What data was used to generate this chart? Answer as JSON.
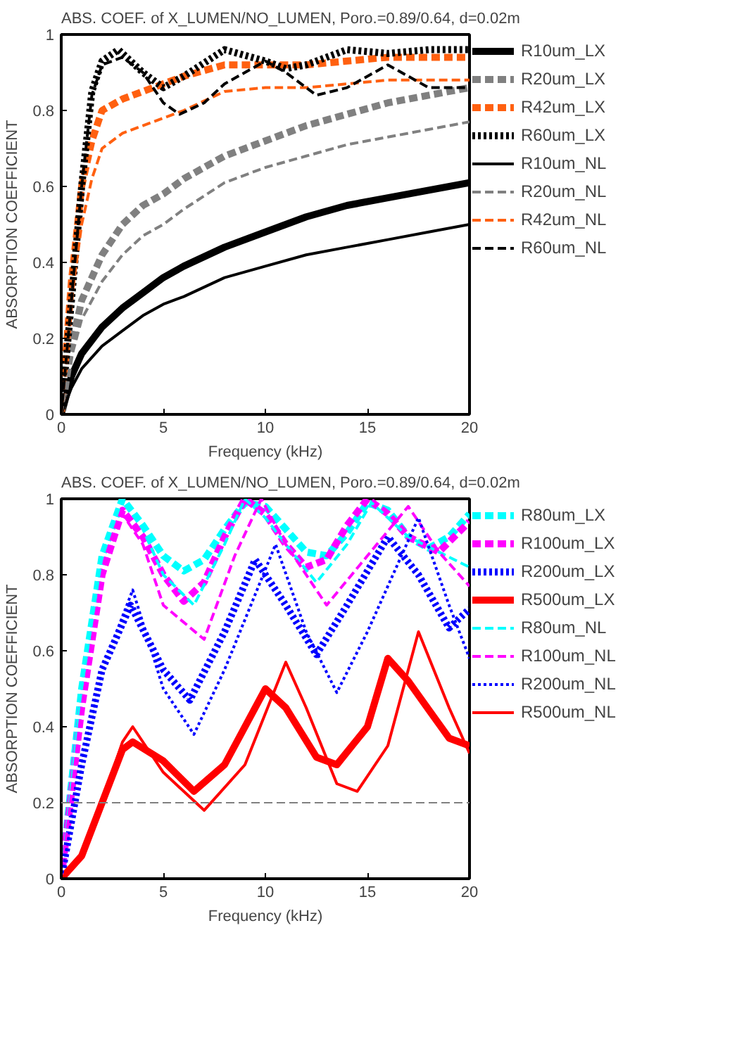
{
  "chart_data": [
    {
      "type": "line",
      "title": "ABS. COEF. of X_LUMEN/NO_LUMEN, Poro.=0.89/0.64, d=0.02m",
      "xlabel": "Frequency (kHz)",
      "ylabel": "ABSORPTION COEFFICIENT",
      "xlim": [
        0,
        20
      ],
      "ylim": [
        0,
        1
      ],
      "xticks": [
        0,
        5,
        10,
        15,
        20
      ],
      "yticks": [
        0,
        0.2,
        0.4,
        0.6,
        0.8,
        1
      ],
      "grid": false,
      "legend": "right",
      "marker": "none",
      "series": [
        {
          "name": "R10um_LX",
          "color": "#000000",
          "line_style": "solid",
          "x": [
            0,
            0.5,
            1,
            2,
            3,
            4,
            5,
            6,
            8,
            10,
            12,
            14,
            16,
            18,
            20
          ],
          "values": [
            0,
            0.1,
            0.16,
            0.23,
            0.28,
            0.32,
            0.36,
            0.39,
            0.44,
            0.48,
            0.52,
            0.55,
            0.57,
            0.59,
            0.61
          ]
        },
        {
          "name": "R20um_LX",
          "color": "#808080",
          "line_style": "dashed",
          "x": [
            0,
            0.5,
            1,
            2,
            3,
            4,
            5,
            6,
            8,
            10,
            12,
            14,
            16,
            18,
            20
          ],
          "values": [
            0,
            0.18,
            0.3,
            0.42,
            0.5,
            0.55,
            0.58,
            0.62,
            0.68,
            0.72,
            0.76,
            0.79,
            0.82,
            0.84,
            0.86
          ]
        },
        {
          "name": "R42um_LX",
          "color": "#ff6010",
          "line_style": "dashed",
          "x": [
            0,
            0.5,
            1,
            1.5,
            2,
            3,
            4,
            5,
            6,
            8,
            10,
            12,
            14,
            16,
            18,
            20
          ],
          "values": [
            0,
            0.35,
            0.6,
            0.72,
            0.8,
            0.83,
            0.85,
            0.87,
            0.89,
            0.92,
            0.92,
            0.92,
            0.93,
            0.94,
            0.94,
            0.94
          ]
        },
        {
          "name": "R60um_LX",
          "color": "#000000",
          "line_style": "dotted",
          "x": [
            0,
            0.5,
            1,
            1.5,
            2,
            2.8,
            4,
            5,
            6,
            8,
            10,
            11,
            12,
            14,
            16,
            18,
            20
          ],
          "values": [
            0,
            0.3,
            0.6,
            0.85,
            0.93,
            0.96,
            0.9,
            0.86,
            0.89,
            0.96,
            0.93,
            0.91,
            0.92,
            0.96,
            0.95,
            0.96,
            0.96
          ]
        },
        {
          "name": "R10um_NL",
          "color": "#000000",
          "line_style": "solid",
          "x": [
            0,
            0.5,
            1,
            2,
            3,
            4,
            5,
            6,
            8,
            10,
            12,
            14,
            16,
            18,
            20
          ],
          "values": [
            0,
            0.07,
            0.12,
            0.18,
            0.22,
            0.26,
            0.29,
            0.31,
            0.36,
            0.39,
            0.42,
            0.44,
            0.46,
            0.48,
            0.5
          ]
        },
        {
          "name": "R20um_NL",
          "color": "#808080",
          "line_style": "dashed",
          "x": [
            0,
            0.5,
            1,
            2,
            3,
            4,
            5,
            6,
            8,
            10,
            12,
            14,
            16,
            18,
            20
          ],
          "values": [
            0,
            0.15,
            0.25,
            0.35,
            0.42,
            0.47,
            0.5,
            0.54,
            0.61,
            0.65,
            0.68,
            0.71,
            0.73,
            0.75,
            0.77
          ]
        },
        {
          "name": "R42um_NL",
          "color": "#ff6010",
          "line_style": "dashed",
          "x": [
            0,
            0.5,
            1,
            1.5,
            2,
            3,
            4,
            5,
            6,
            8,
            10,
            12,
            14,
            16,
            18,
            20
          ],
          "values": [
            0,
            0.3,
            0.5,
            0.62,
            0.7,
            0.74,
            0.76,
            0.78,
            0.8,
            0.85,
            0.86,
            0.86,
            0.87,
            0.88,
            0.88,
            0.88
          ]
        },
        {
          "name": "R60um_NL",
          "color": "#000000",
          "line_style": "dashed",
          "x": [
            0,
            0.5,
            1,
            1.5,
            2,
            3,
            4,
            5,
            5.8,
            7,
            8,
            10,
            11,
            12.5,
            14,
            16,
            18,
            20
          ],
          "values": [
            0,
            0.3,
            0.6,
            0.84,
            0.92,
            0.94,
            0.9,
            0.82,
            0.79,
            0.82,
            0.87,
            0.93,
            0.9,
            0.84,
            0.86,
            0.92,
            0.86,
            0.86
          ]
        }
      ]
    },
    {
      "type": "line",
      "title": "ABS. COEF. of X_LUMEN/NO_LUMEN, Poro.=0.89/0.64, d=0.02m",
      "xlabel": "Frequency (kHz)",
      "ylabel": "ABSORPTION COEFFICIENT",
      "xlim": [
        0,
        20
      ],
      "ylim": [
        0,
        1
      ],
      "xticks": [
        0,
        5,
        10,
        15,
        20
      ],
      "yticks": [
        0,
        0.2,
        0.4,
        0.6,
        0.8,
        1
      ],
      "grid": false,
      "legend": "right",
      "marker": "none",
      "ref_lines": [
        {
          "axis": "y",
          "value": 0.2,
          "color": "#808080",
          "line_style": "dashed"
        }
      ],
      "series": [
        {
          "name": "R80um_LX",
          "color": "#00ffff",
          "line_style": "dashed",
          "x": [
            0,
            1,
            2,
            3,
            4,
            5,
            6,
            7,
            8,
            9,
            10,
            11,
            12,
            13,
            14,
            15,
            16,
            17,
            18,
            19,
            20
          ],
          "values": [
            0,
            0.5,
            0.85,
            1.0,
            0.93,
            0.85,
            0.81,
            0.84,
            0.92,
            0.99,
            0.98,
            0.92,
            0.86,
            0.85,
            0.91,
            0.99,
            0.97,
            0.9,
            0.87,
            0.9,
            0.96
          ]
        },
        {
          "name": "R100um_LX",
          "color": "#ff00ff",
          "line_style": "dashed",
          "x": [
            0,
            1,
            2,
            3,
            4,
            5,
            6,
            7,
            8,
            9,
            10,
            11,
            12,
            13,
            14,
            15,
            16,
            17,
            18.5,
            20
          ],
          "values": [
            0,
            0.45,
            0.8,
            0.97,
            0.9,
            0.8,
            0.73,
            0.78,
            0.9,
            1.0,
            0.96,
            0.88,
            0.82,
            0.84,
            0.93,
            1.0,
            0.96,
            0.9,
            0.86,
            0.94
          ]
        },
        {
          "name": "R200um_LX",
          "color": "#0000ff",
          "line_style": "dotted",
          "x": [
            0,
            1,
            2,
            3.4,
            5,
            6.3,
            8,
            9.5,
            11,
            12.5,
            14,
            16,
            17.5,
            19,
            20
          ],
          "values": [
            0,
            0.3,
            0.55,
            0.72,
            0.55,
            0.47,
            0.65,
            0.84,
            0.72,
            0.59,
            0.72,
            0.9,
            0.8,
            0.66,
            0.71
          ]
        },
        {
          "name": "R500um_LX",
          "color": "#ff0000",
          "line_style": "solid",
          "x": [
            0,
            1,
            2,
            3,
            3.5,
            5,
            6.5,
            8,
            10,
            11,
            12.5,
            13.5,
            15,
            16,
            17,
            19,
            20
          ],
          "values": [
            0,
            0.06,
            0.2,
            0.34,
            0.36,
            0.31,
            0.23,
            0.3,
            0.5,
            0.45,
            0.32,
            0.3,
            0.4,
            0.58,
            0.52,
            0.37,
            0.35
          ]
        },
        {
          "name": "R80um_NL",
          "color": "#00ffff",
          "line_style": "dashed",
          "x": [
            0,
            1,
            2,
            3,
            4,
            5,
            6.5,
            8,
            9,
            10,
            11,
            12.5,
            14,
            15.2,
            17,
            18.5,
            20
          ],
          "values": [
            0,
            0.5,
            0.85,
            1.0,
            0.92,
            0.8,
            0.72,
            0.88,
            1.0,
            0.95,
            0.88,
            0.78,
            0.88,
            0.99,
            0.9,
            0.86,
            0.82
          ]
        },
        {
          "name": "R100um_NL",
          "color": "#ff00ff",
          "line_style": "dashed",
          "x": [
            0,
            1,
            2,
            3,
            4,
            5,
            7,
            8.5,
            9.8,
            11,
            13,
            15,
            17,
            18.5,
            20
          ],
          "values": [
            0,
            0.45,
            0.8,
            0.96,
            0.88,
            0.72,
            0.63,
            0.85,
            1.0,
            0.88,
            0.72,
            0.85,
            0.98,
            0.86,
            0.77
          ]
        },
        {
          "name": "R200um_NL",
          "color": "#0000ff",
          "line_style": "dotted",
          "x": [
            0,
            1,
            2,
            3.5,
            5,
            6.5,
            8,
            10.5,
            12,
            13.5,
            15,
            17.5,
            19,
            20
          ],
          "values": [
            0,
            0.3,
            0.55,
            0.76,
            0.5,
            0.38,
            0.55,
            0.88,
            0.65,
            0.49,
            0.65,
            0.95,
            0.72,
            0.58
          ]
        },
        {
          "name": "R500um_NL",
          "color": "#ff0000",
          "line_style": "solid",
          "x": [
            0,
            1,
            2,
            3,
            3.5,
            5,
            7,
            9,
            11,
            12,
            13.5,
            14.5,
            16,
            17.5,
            19,
            20
          ],
          "values": [
            0,
            0.06,
            0.2,
            0.36,
            0.4,
            0.28,
            0.18,
            0.3,
            0.57,
            0.45,
            0.25,
            0.23,
            0.35,
            0.65,
            0.45,
            0.33
          ]
        }
      ]
    }
  ]
}
